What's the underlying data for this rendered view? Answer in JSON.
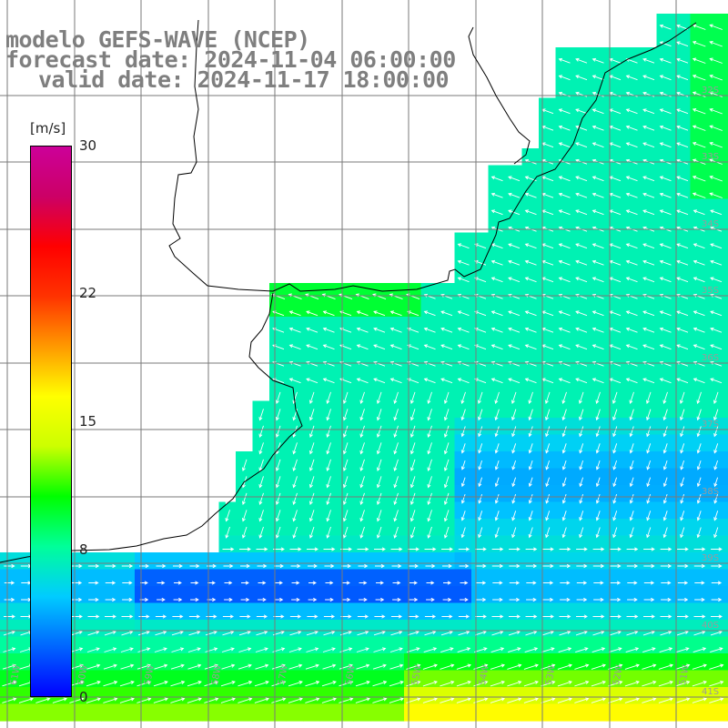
{
  "title_lines": [
    "modelo GEFS-WAVE (NCEP)",
    "forecast date: 2024-11-04 06:00:00",
    "valid date: 2024-11-17 18:00:00"
  ],
  "colorbar": {
    "unit": "[m/s]",
    "ticks": [
      "30",
      "22",
      "15",
      "8",
      "0"
    ],
    "tick_values": [
      30,
      22,
      15,
      8,
      0
    ],
    "min": 0,
    "max": 30,
    "colors": [
      "#0000ff",
      "#0066ff",
      "#00ccff",
      "#00ff99",
      "#00ff00",
      "#ccff00",
      "#ffff00",
      "#ff9900",
      "#ff3300",
      "#ff0000",
      "#cc0066",
      "#cc0099"
    ]
  },
  "lat_labels": [
    "32S",
    "33S",
    "34S",
    "35S",
    "36S",
    "37S",
    "38S",
    "39S",
    "40S",
    "41S"
  ],
  "lon_labels": [
    "61W",
    "60W",
    "59W",
    "58W",
    "57W",
    "56W",
    "55W",
    "54W",
    "53W",
    "52W",
    "51W"
  ],
  "colors": {
    "title": "#7f7f7f",
    "coast": "#000000",
    "grid": "#7a7a7a",
    "land": "#ffffff",
    "arrows": "#ffffff"
  }
}
